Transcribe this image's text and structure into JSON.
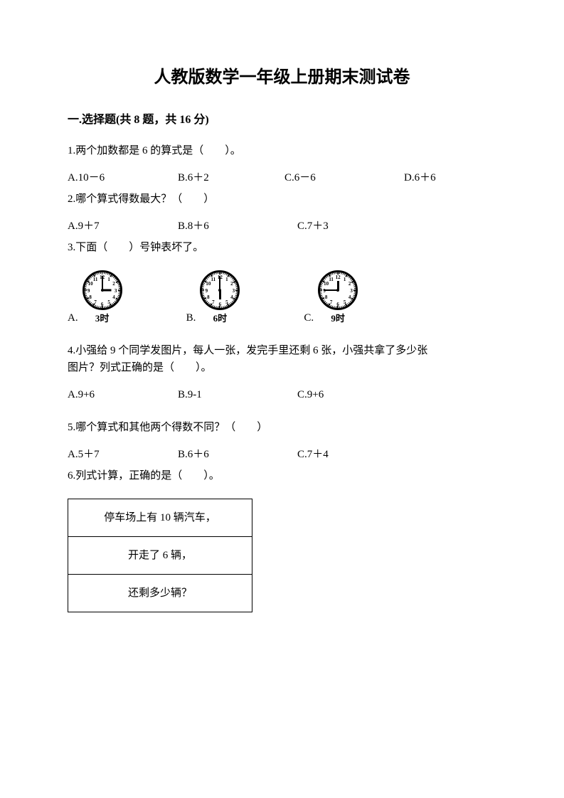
{
  "title": "人教版数学一年级上册期末测试卷",
  "section1": {
    "header": "一.选择题(共 8 题，共 16 分)",
    "q1": {
      "text": "1.两个加数都是 6 的算式是（　　）。",
      "A": "A.10－6",
      "B": "B.6＋2",
      "C": "C.6－6",
      "D": "D.6＋6"
    },
    "q2": {
      "text": "2.哪个算式得数最大？（　　）",
      "A": "A.9＋7",
      "B": "B.8＋6",
      "C": "C.7＋3"
    },
    "q3": {
      "text": "3.下面（　　）号钟表坏了。",
      "labelA": "A.",
      "labelB": "B.",
      "labelC": "C.",
      "clockA": {
        "caption": "3时",
        "hourAngle": 90,
        "minAngle": 0
      },
      "clockB": {
        "caption": "6时",
        "hourAngle": 180,
        "minAngle": 0
      },
      "clockC": {
        "caption": "9时",
        "hourAngle": 0,
        "minAngle": 270
      }
    },
    "q4": {
      "line1": "4.小强给 9 个同学发图片，每人一张，发完手里还剩 6 张，小强共拿了多少张",
      "line2": "图片？列式正确的是（　　）。",
      "A": "A.9+6",
      "B": "B.9-1",
      "C": "C.9+6"
    },
    "q5": {
      "text": "5.哪个算式和其他两个得数不同？（　　）",
      "A": "A.5＋7",
      "B": "B.6＋6",
      "C": "C.7＋4"
    },
    "q6": {
      "text": "6.列式计算，正确的是（　　）。",
      "box": {
        "r1": "停车场上有 10 辆汽车，",
        "r2": "开走了 6 辆，",
        "r3": "还剩多少辆？"
      }
    }
  },
  "clockNumbers": [
    "12",
    "1",
    "2",
    "3",
    "4",
    "5",
    "6",
    "7",
    "8",
    "9",
    "10",
    "11"
  ],
  "colors": {
    "text": "#000000",
    "bg": "#ffffff",
    "border": "#000000"
  }
}
